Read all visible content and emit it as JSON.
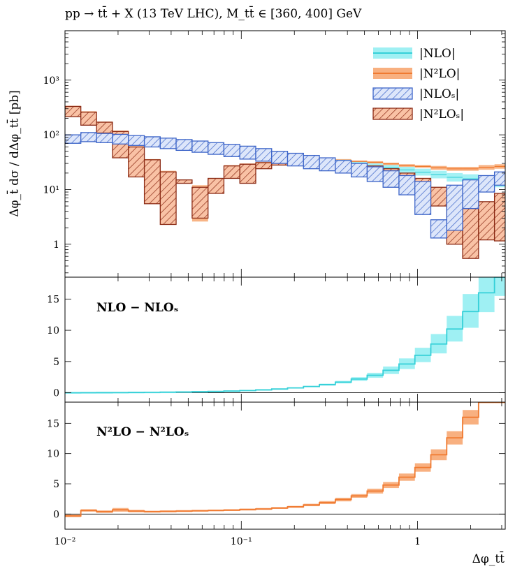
{
  "header": {
    "title": "pp → tt̄ + X (13 TeV LHC), M_tt̄ ∈ [360, 400] GeV"
  },
  "colors": {
    "NLO": "#35d0d8",
    "NLO_band": "#9ff0f3",
    "N2LO": "#f07a30",
    "N2LO_band": "#f8b080",
    "NLOs": "#3c64c8",
    "N2LOs": "#8b2a14",
    "N2LOs_fill": "#f9c2a5"
  },
  "chart_data": [
    {
      "type": "line",
      "panel": "main",
      "ylabel": "Δφ_t̄ dσ / dΔφ_tt̄ [pb]",
      "yscale": "log",
      "ylim": [
        0.25,
        8000
      ],
      "xscale": "log",
      "xlim": [
        0.01,
        3.14159
      ],
      "yticks": [
        {
          "value": 1,
          "label": "1"
        },
        {
          "value": 10,
          "label": "10¹"
        },
        {
          "value": 100,
          "label": "10²"
        },
        {
          "value": 1000,
          "label": "10³"
        }
      ],
      "legend": {
        "placement": "top-right",
        "entries": [
          "|NLO|",
          "|N²LO|",
          "|NLOₛ|",
          "|N²LOₛ|"
        ]
      },
      "bin_edges": [
        0.01,
        0.0123,
        0.0151,
        0.0186,
        0.0229,
        0.0282,
        0.0347,
        0.0427,
        0.0526,
        0.0648,
        0.0797,
        0.0981,
        0.1208,
        0.1487,
        0.183,
        0.2253,
        0.2774,
        0.3415,
        0.4204,
        0.5175,
        0.6371,
        0.7843,
        0.9655,
        1.1886,
        1.4633,
        1.8014,
        2.2177,
        2.7302,
        3.14159
      ],
      "series": [
        {
          "name": "|NLO|",
          "lo": [
            80,
            85,
            82,
            78,
            75,
            72,
            68,
            64,
            60,
            56,
            52,
            48,
            44,
            40,
            37,
            34,
            31,
            28,
            26,
            24,
            22,
            20,
            18,
            16,
            14,
            13,
            12,
            11
          ],
          "hi": [
            98,
            102,
            98,
            94,
            90,
            86,
            82,
            78,
            74,
            69,
            64,
            59,
            54,
            49,
            45,
            41,
            38,
            35,
            32,
            30,
            28,
            26,
            24,
            22,
            20,
            19,
            18,
            17
          ]
        },
        {
          "name": "|N²LO|",
          "lo": [
            215,
            150,
            108,
            38,
            17,
            5.5,
            2.3,
            13,
            2.6,
            8.5,
            16,
            13,
            24,
            30,
            32,
            33,
            33,
            33,
            31,
            30,
            28,
            26,
            25,
            23,
            22,
            22,
            23,
            24
          ],
          "hi": [
            340,
            270,
            175,
            120,
            62,
            36,
            22,
            15,
            12,
            16,
            28,
            30,
            32,
            36,
            38,
            38,
            37,
            36,
            34,
            33,
            31,
            29,
            28,
            27,
            26,
            26,
            28,
            29
          ]
        },
        {
          "name": "|NLOₛ|",
          "lo": [
            70,
            75,
            72,
            68,
            64,
            60,
            56,
            52,
            48,
            44,
            40,
            36,
            33,
            30,
            27,
            24,
            22,
            20,
            17,
            14,
            11,
            8,
            3.5,
            1.3,
            1.8,
            4.5,
            9,
            12
          ],
          "hi": [
            100,
            110,
            106,
            102,
            97,
            92,
            87,
            82,
            77,
            72,
            67,
            62,
            56,
            50,
            46,
            42,
            38,
            34,
            30,
            26,
            22,
            18,
            14,
            2.8,
            12,
            15,
            18,
            21
          ]
        },
        {
          "name": "|N²LOₛ|",
          "lo": [
            215,
            150,
            108,
            38,
            17,
            5.5,
            2.3,
            13,
            3.0,
            8.5,
            16,
            13,
            24,
            28,
            30,
            30,
            30,
            28,
            25,
            22,
            18,
            14,
            10,
            5,
            1.0,
            0.55,
            1.2,
            1.15
          ],
          "hi": [
            330,
            260,
            170,
            115,
            60,
            35,
            21,
            15,
            11,
            16,
            27,
            29,
            31,
            34,
            36,
            36,
            35,
            33,
            30,
            27,
            24,
            20,
            16,
            11,
            6,
            4.5,
            6,
            8.5
          ]
        }
      ]
    },
    {
      "type": "line",
      "panel": "ratio-1",
      "label": "NLO − NLOₛ",
      "ylim": [
        -1.5,
        18.5
      ],
      "yticks": [
        0,
        5,
        10,
        15
      ],
      "series": [
        {
          "name": "NLO − NLOₛ",
          "center": [
            0.01,
            0.02,
            0.03,
            0.04,
            0.06,
            0.08,
            0.1,
            0.13,
            0.17,
            0.22,
            0.28,
            0.36,
            0.46,
            0.6,
            0.78,
            1.0,
            1.3,
            1.7,
            2.2,
            2.8,
            3.6,
            4.6,
            6.0,
            7.8,
            10.2,
            13.0,
            16.0,
            18.5
          ],
          "lo": [
            0.0,
            0.01,
            0.02,
            0.03,
            0.05,
            0.07,
            0.09,
            0.11,
            0.15,
            0.19,
            0.25,
            0.32,
            0.41,
            0.53,
            0.69,
            0.9,
            1.15,
            1.5,
            1.9,
            2.4,
            3.0,
            3.8,
            4.9,
            6.3,
            8.2,
            10.4,
            12.9,
            15.5
          ],
          "hi": [
            0.02,
            0.03,
            0.04,
            0.05,
            0.07,
            0.09,
            0.11,
            0.15,
            0.19,
            0.25,
            0.31,
            0.4,
            0.51,
            0.67,
            0.87,
            1.1,
            1.45,
            1.9,
            2.5,
            3.2,
            4.2,
            5.5,
            7.2,
            9.4,
            12.3,
            15.8,
            18.5,
            18.5
          ]
        }
      ]
    },
    {
      "type": "line",
      "panel": "ratio-2",
      "label": "N²LO − N²LOₛ",
      "xlabel": "Δφ_tt̄",
      "ylim": [
        -2.5,
        18.5
      ],
      "yticks": [
        0,
        5,
        10,
        15
      ],
      "xticks": [
        {
          "value": 0.01,
          "label": "10⁻²"
        },
        {
          "value": 0.1,
          "label": "10⁻¹"
        },
        {
          "value": 1,
          "label": "1"
        }
      ],
      "series": [
        {
          "name": "N²LO − N²LOₛ",
          "center": [
            -0.3,
            0.6,
            0.4,
            0.7,
            0.5,
            0.4,
            0.45,
            0.5,
            0.55,
            0.6,
            0.65,
            0.75,
            0.85,
            1.0,
            1.2,
            1.5,
            1.9,
            2.4,
            3.0,
            3.8,
            4.8,
            6.1,
            7.7,
            9.8,
            12.6,
            16.0,
            18.5,
            18.5
          ],
          "lo": [
            -0.5,
            0.4,
            0.2,
            0.4,
            0.3,
            0.25,
            0.3,
            0.35,
            0.4,
            0.45,
            0.5,
            0.6,
            0.7,
            0.85,
            1.05,
            1.3,
            1.65,
            2.1,
            2.7,
            3.4,
            4.3,
            5.5,
            7.0,
            8.9,
            11.5,
            14.8,
            18.5,
            18.5
          ],
          "hi": [
            -0.1,
            0.8,
            0.6,
            1.0,
            0.7,
            0.55,
            0.6,
            0.65,
            0.7,
            0.75,
            0.8,
            0.9,
            1.0,
            1.15,
            1.35,
            1.7,
            2.15,
            2.7,
            3.3,
            4.2,
            5.3,
            6.7,
            8.4,
            10.7,
            13.7,
            17.2,
            18.5,
            18.5
          ]
        }
      ]
    }
  ]
}
